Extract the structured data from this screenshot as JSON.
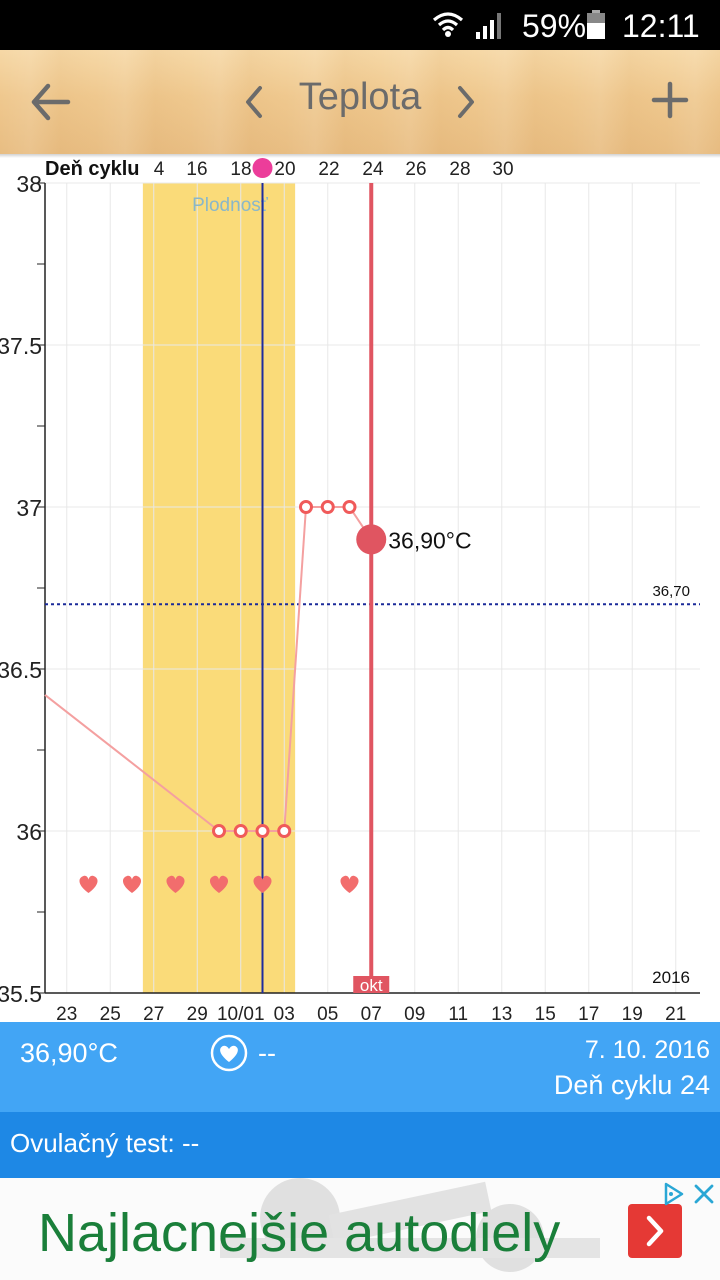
{
  "status_bar": {
    "battery": "59%",
    "time": "12:11",
    "icons": [
      "wifi-icon",
      "signal-icon",
      "battery-icon"
    ]
  },
  "header": {
    "title": "Teplota",
    "back_icon": "arrow-left-icon",
    "prev_icon": "chevron-left-icon",
    "next_icon": "chevron-right-icon",
    "add_icon": "plus-icon"
  },
  "chart": {
    "cycle_label": "Deň cyklu",
    "fertile_label": "Plodnosť",
    "coverline_label": "36,70",
    "current_label": "36,90°C",
    "month_label": "okt",
    "year_label": "2016",
    "y_ticks": [
      "38",
      "37.5",
      "37",
      "36.5",
      "36",
      "35.5"
    ],
    "x_ticks": [
      "23",
      "25",
      "27",
      "29",
      "10/01",
      "03",
      "05",
      "07",
      "09",
      "11",
      "13",
      "15",
      "17",
      "19",
      "21"
    ],
    "cycle_ticks": [
      "4",
      "16",
      "18",
      "20",
      "22",
      "24",
      "26",
      "28",
      "30"
    ]
  },
  "chart_data": {
    "type": "line",
    "title": "Teplota",
    "xlabel": "",
    "ylabel": "",
    "ylim": [
      35.5,
      38
    ],
    "grid": true,
    "year": "2016",
    "points": [
      {
        "date": "2016-09-21",
        "temp": 36.42
      },
      {
        "date": "2016-09-29",
        "temp": 36.0
      },
      {
        "date": "2016-09-30",
        "temp": 36.0
      },
      {
        "date": "2016-10-01",
        "temp": 36.0
      },
      {
        "date": "2016-10-02",
        "temp": 36.0
      },
      {
        "date": "2016-10-03",
        "temp": 37.0
      },
      {
        "date": "2016-10-04",
        "temp": 37.0
      },
      {
        "date": "2016-10-05",
        "temp": 37.0
      },
      {
        "date": "2016-10-06",
        "temp": 36.9
      }
    ],
    "coverline": 36.7,
    "current": {
      "date": "2016-10-06",
      "temp": 36.9,
      "label": "36,90°C"
    },
    "fertile_window": {
      "start": "2016-09-26",
      "end": "2016-10-02",
      "label": "Plodnosť"
    },
    "ovulation_day": "2016-10-01",
    "intercourse_days": [
      "2016-09-23",
      "2016-09-25",
      "2016-09-27",
      "2016-09-29",
      "2016-10-01",
      "2016-10-05"
    ],
    "colors": {
      "fertile": "#fadb79",
      "line": "#f4a0a0",
      "point": "#f05a5a",
      "current_line": "#e05561",
      "ovulation_line": "#1e2c9e",
      "coverline": "#1a2a99",
      "heart": "#f26d6d"
    }
  },
  "info": {
    "temp": "36,90°C",
    "heart_value": "--",
    "heart_icon": "heart-icon",
    "date": "7. 10. 2016",
    "cycle_day": "Deň cyklu 24"
  },
  "ovulation_test": {
    "label": "Ovulačný test: --"
  },
  "ad": {
    "text": "Najlacnejšie autodiely",
    "arrow_icon": "chevron-right-icon",
    "adchoices_icon": "adchoices-icon",
    "close_icon": "close-icon"
  }
}
